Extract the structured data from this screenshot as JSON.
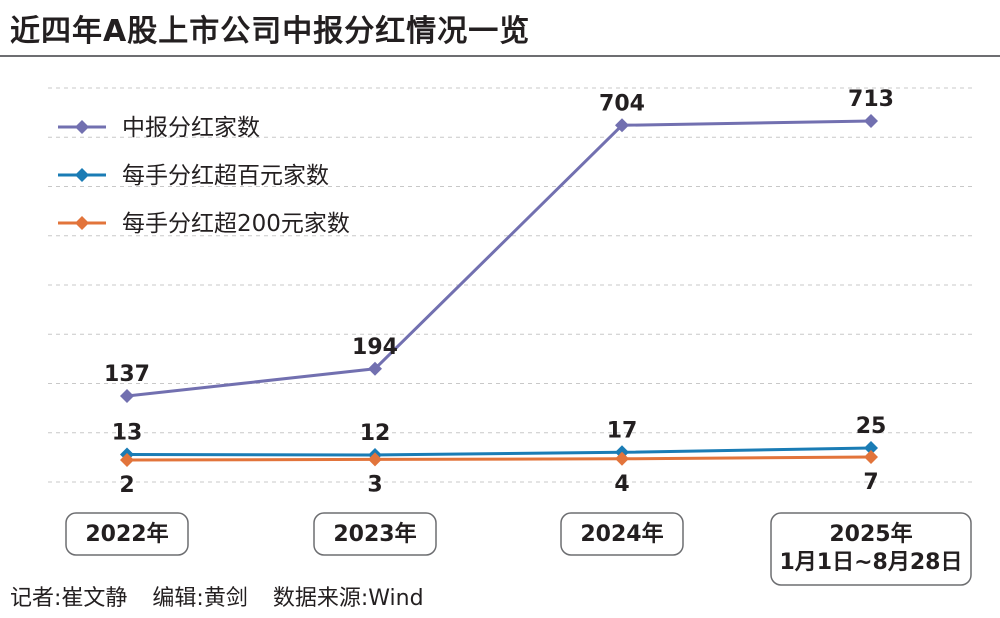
{
  "title": "近四年A股上市公司中报分红情况一览",
  "credits": {
    "reporter": "记者:崔文静",
    "editor": "编辑:黄剑",
    "source": "数据来源:Wind"
  },
  "chart_data": {
    "type": "line",
    "categories": [
      "2022年",
      "2023年",
      "2024年",
      "2025年\n1月1日~8月28日"
    ],
    "series": [
      {
        "name": "中报分红家数",
        "values": [
          137,
          194,
          704,
          713
        ],
        "color": "#7270b0"
      },
      {
        "name": "每手分红超百元家数",
        "values": [
          13,
          12,
          17,
          25
        ],
        "color": "#1a7cb5"
      },
      {
        "name": "每手分红超200元家数",
        "values": [
          2,
          3,
          4,
          7
        ],
        "color": "#e2743b"
      }
    ],
    "ylim": [
      0,
      780
    ],
    "grid": true,
    "legend_position": "top-left"
  }
}
